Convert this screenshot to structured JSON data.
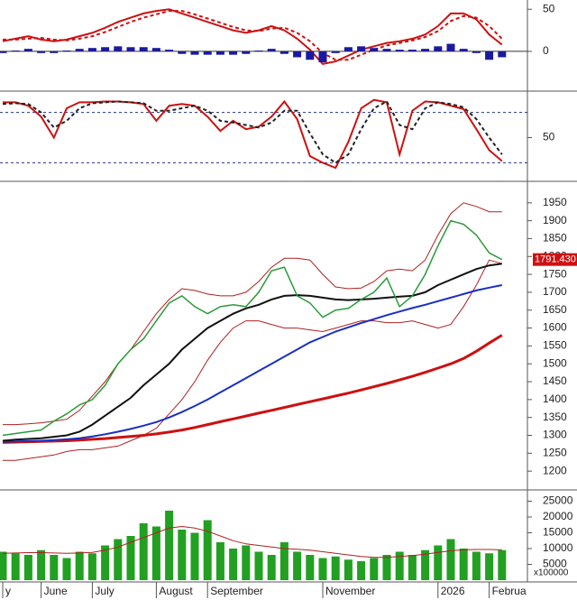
{
  "chart_data": [
    {
      "type": "line",
      "ylim": [
        -44,
        61
      ],
      "yticks": [
        0,
        50
      ],
      "reference_lines": [
        0
      ],
      "reference_dash": false,
      "series": [
        {
          "name": "MACD",
          "color": "#cc1111",
          "kind": "line",
          "values": [
            12,
            15,
            18,
            14,
            12,
            14,
            18,
            22,
            28,
            35,
            40,
            45,
            48,
            50,
            45,
            40,
            35,
            30,
            25,
            22,
            25,
            30,
            25,
            15,
            2,
            -15,
            -12,
            -5,
            2,
            6,
            10,
            12,
            15,
            20,
            30,
            45,
            45,
            38,
            20,
            8
          ]
        },
        {
          "name": "Signal",
          "color": "#cc1111",
          "kind": "line",
          "dash": true,
          "values": [
            14,
            14,
            15,
            16,
            14,
            13,
            15,
            18,
            23,
            29,
            35,
            40,
            44,
            48,
            48,
            44,
            39,
            34,
            29,
            25,
            24,
            27,
            28,
            22,
            12,
            -2,
            -10,
            -10,
            -4,
            2,
            7,
            10,
            13,
            17,
            24,
            36,
            42,
            40,
            30,
            15
          ]
        },
        {
          "name": "Histogram",
          "color": "#1a1aa0",
          "kind": "bar",
          "values": [
            -2,
            1,
            3,
            -2,
            -2,
            1,
            3,
            4,
            5,
            6,
            5,
            5,
            4,
            2,
            -3,
            -4,
            -4,
            -4,
            -4,
            -3,
            1,
            3,
            -3,
            -7,
            -10,
            -13,
            -2,
            5,
            6,
            4,
            3,
            2,
            2,
            3,
            6,
            9,
            3,
            -2,
            -10,
            -7
          ]
        }
      ]
    },
    {
      "type": "line",
      "ylim": [
        0,
        100
      ],
      "yticks": [
        50
      ],
      "reference_lines": [
        80,
        20
      ],
      "reference_dash": true,
      "series": [
        {
          "name": "%K",
          "color": "#cc1111",
          "kind": "line",
          "values": [
            92,
            92,
            88,
            75,
            50,
            85,
            92,
            92,
            93,
            93,
            92,
            90,
            70,
            88,
            90,
            88,
            75,
            58,
            70,
            60,
            63,
            75,
            93,
            72,
            28,
            20,
            14,
            45,
            85,
            95,
            92,
            30,
            82,
            93,
            92,
            88,
            84,
            60,
            35,
            22
          ]
        },
        {
          "name": "%D",
          "color": "#222222",
          "kind": "line",
          "dash": true,
          "values": [
            90,
            91,
            90,
            80,
            62,
            70,
            85,
            91,
            92,
            93,
            92,
            91,
            82,
            82,
            85,
            88,
            82,
            70,
            68,
            65,
            62,
            68,
            82,
            82,
            55,
            30,
            20,
            30,
            60,
            85,
            93,
            65,
            60,
            85,
            92,
            90,
            86,
            72,
            50,
            30
          ]
        }
      ]
    },
    {
      "type": "line",
      "ylim": [
        1155,
        2005
      ],
      "yticks": [
        1200,
        1250,
        1300,
        1350,
        1400,
        1450,
        1500,
        1550,
        1600,
        1650,
        1700,
        1750,
        1800,
        1850,
        1900,
        1950
      ],
      "series": [
        {
          "name": "Upper band",
          "color": "#b02020",
          "kind": "line",
          "width": 1,
          "values": [
            1330,
            1330,
            1332,
            1335,
            1340,
            1345,
            1370,
            1410,
            1450,
            1500,
            1540,
            1590,
            1640,
            1680,
            1710,
            1705,
            1695,
            1690,
            1690,
            1700,
            1730,
            1770,
            1795,
            1795,
            1790,
            1750,
            1715,
            1710,
            1712,
            1730,
            1760,
            1765,
            1760,
            1790,
            1860,
            1920,
            1950,
            1940,
            1925,
            1925
          ]
        },
        {
          "name": "Lower band",
          "color": "#b02020",
          "kind": "line",
          "width": 1,
          "values": [
            1230,
            1230,
            1235,
            1240,
            1245,
            1255,
            1260,
            1260,
            1265,
            1270,
            1285,
            1300,
            1320,
            1360,
            1400,
            1450,
            1510,
            1560,
            1600,
            1620,
            1620,
            1610,
            1600,
            1600,
            1595,
            1590,
            1600,
            1610,
            1620,
            1620,
            1615,
            1615,
            1620,
            1610,
            1600,
            1610,
            1660,
            1720,
            1790,
            1780
          ]
        },
        {
          "name": "MA200",
          "color": "#cc1111",
          "kind": "line",
          "width": 3,
          "values": [
            1280,
            1281,
            1282,
            1283,
            1284,
            1285,
            1287,
            1289,
            1291,
            1294,
            1297,
            1300,
            1304,
            1309,
            1315,
            1322,
            1330,
            1338,
            1346,
            1354,
            1362,
            1370,
            1378,
            1386,
            1394,
            1402,
            1410,
            1418,
            1427,
            1436,
            1445,
            1455,
            1465,
            1476,
            1488,
            1500,
            1515,
            1535,
            1558,
            1580
          ]
        },
        {
          "name": "MA50",
          "color": "#1a2fc0",
          "kind": "line",
          "width": 2,
          "values": [
            1282,
            1283,
            1284,
            1285,
            1287,
            1289,
            1292,
            1297,
            1303,
            1310,
            1318,
            1327,
            1337,
            1350,
            1365,
            1382,
            1400,
            1420,
            1440,
            1460,
            1480,
            1500,
            1520,
            1540,
            1560,
            1575,
            1590,
            1602,
            1614,
            1625,
            1636,
            1646,
            1656,
            1665,
            1675,
            1685,
            1695,
            1705,
            1713,
            1720
          ]
        },
        {
          "name": "MA20",
          "color": "#111111",
          "kind": "line",
          "width": 2,
          "values": [
            1285,
            1288,
            1290,
            1292,
            1296,
            1300,
            1310,
            1330,
            1355,
            1380,
            1405,
            1440,
            1470,
            1500,
            1540,
            1570,
            1600,
            1620,
            1640,
            1655,
            1665,
            1680,
            1690,
            1692,
            1690,
            1685,
            1680,
            1678,
            1680,
            1682,
            1685,
            1688,
            1690,
            1700,
            1720,
            1735,
            1750,
            1765,
            1775,
            1780
          ]
        },
        {
          "name": "Close",
          "color": "#2a9a3a",
          "kind": "line",
          "width": 1.5,
          "values": [
            1300,
            1305,
            1310,
            1315,
            1340,
            1360,
            1385,
            1400,
            1440,
            1500,
            1540,
            1570,
            1620,
            1670,
            1690,
            1660,
            1640,
            1660,
            1665,
            1660,
            1700,
            1760,
            1770,
            1690,
            1670,
            1630,
            1650,
            1655,
            1680,
            1700,
            1740,
            1660,
            1690,
            1750,
            1830,
            1900,
            1890,
            1860,
            1810,
            1791.43
          ],
          "value_labels": [
            null,
            null,
            null,
            null,
            null,
            null,
            null,
            null,
            null,
            null,
            null,
            null,
            null,
            null,
            null,
            null,
            null,
            null,
            null,
            null,
            null,
            null,
            null,
            null,
            null,
            null,
            null,
            null,
            null,
            null,
            null,
            null,
            null,
            null,
            null,
            null,
            null,
            null,
            null,
            "1791.430"
          ]
        }
      ]
    },
    {
      "type": "bar",
      "ylim": [
        0,
        28000
      ],
      "yticks": [
        5000,
        10000,
        15000,
        20000,
        25000
      ],
      "unit_label": "x100000",
      "categories": [
        "y",
        null,
        null,
        "June",
        null,
        null,
        null,
        "July",
        null,
        null,
        null,
        null,
        "August",
        null,
        null,
        null,
        "September",
        null,
        null,
        null,
        null,
        null,
        null,
        null,
        null,
        "November",
        null,
        null,
        null,
        null,
        null,
        null,
        null,
        null,
        "2026",
        null,
        null,
        null,
        "Februa",
        null
      ],
      "series": [
        {
          "name": "Volume",
          "color": "#22a022",
          "kind": "bar",
          "values": [
            9000,
            8500,
            8000,
            9500,
            8000,
            7000,
            9000,
            8500,
            11000,
            13000,
            14000,
            18000,
            17000,
            22000,
            16000,
            15000,
            19000,
            12000,
            10000,
            11000,
            9000,
            8000,
            12000,
            9000,
            8000,
            7000,
            7500,
            6500,
            6000,
            7000,
            8000,
            9000,
            8000,
            9500,
            11000,
            13000,
            10000,
            9000,
            8500,
            9500
          ]
        },
        {
          "name": "Volume MA",
          "color": "#b02020",
          "kind": "line",
          "width": 1,
          "values": [
            8500,
            8600,
            8700,
            8700,
            8600,
            8500,
            8600,
            8800,
            9500,
            10500,
            12000,
            13500,
            15000,
            16500,
            17000,
            16500,
            15500,
            14000,
            12500,
            11500,
            11000,
            10500,
            10000,
            9800,
            9500,
            9000,
            8500,
            8000,
            7500,
            7200,
            7200,
            7500,
            7800,
            8200,
            8800,
            9300,
            9600,
            9700,
            9700,
            9600
          ]
        }
      ]
    }
  ]
}
